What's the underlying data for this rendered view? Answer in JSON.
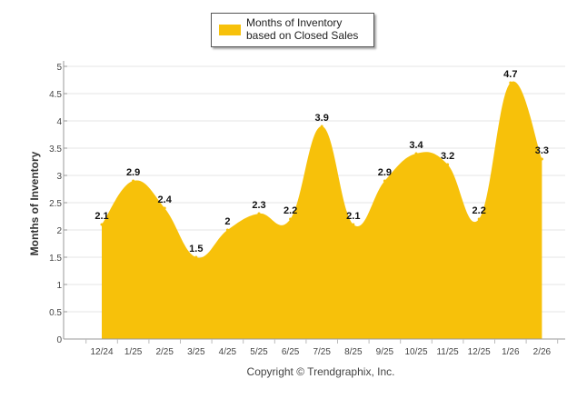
{
  "chart_data": {
    "type": "area",
    "categories": [
      "12/24",
      "1/25",
      "2/25",
      "3/25",
      "4/25",
      "5/25",
      "6/25",
      "7/25",
      "8/25",
      "9/25",
      "10/25",
      "11/25",
      "12/25",
      "1/26",
      "2/26"
    ],
    "series": [
      {
        "name": "Months of Inventory based on Closed Sales",
        "values": [
          2.1,
          2.9,
          2.4,
          1.5,
          2,
          2.3,
          2.2,
          3.9,
          2.1,
          2.9,
          3.4,
          3.2,
          2.2,
          4.7,
          3.3
        ],
        "color": "#F7C10A"
      }
    ],
    "data_labels": [
      "2.1",
      "2.9",
      "2.4",
      "1.5",
      "2",
      "2.3",
      "2.2",
      "3.9",
      "2.1",
      "2.9",
      "3.4",
      "3.2",
      "2.2",
      "4.7",
      "3.3"
    ],
    "ylabel": "Months of Inventory",
    "xlabel": "",
    "ylim": [
      0,
      5
    ],
    "yticks": [
      "0",
      "0.5",
      "1",
      "1.5",
      "2",
      "2.5",
      "3",
      "3.5",
      "4",
      "4.5",
      "5"
    ],
    "grid": true,
    "legend_position": "top-center",
    "credit": "Copyright © Trendgraphix, Inc."
  }
}
